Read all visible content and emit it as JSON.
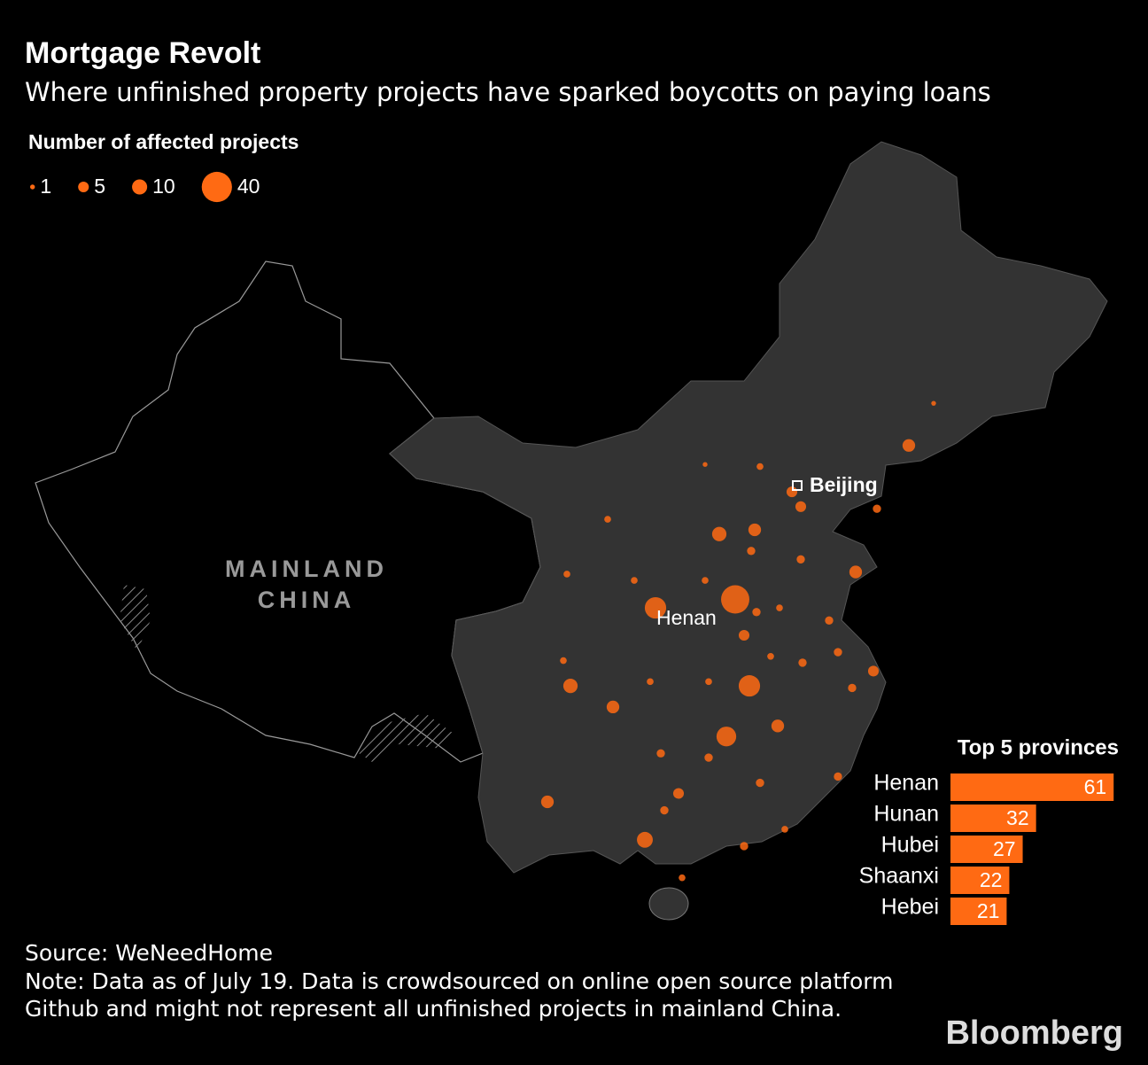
{
  "header": {
    "title": "Mortgage Revolt",
    "subtitle": "Where unfinished property projects have sparked boycotts on paying loans"
  },
  "legend": {
    "title": "Number of affected projects",
    "values": [
      1,
      5,
      10,
      40
    ],
    "color": "#ff6a13"
  },
  "map": {
    "region_label": [
      "MAINLAND",
      "CHINA"
    ],
    "city": "Beijing",
    "province": "Henan",
    "color": "#ff6a13",
    "bubbles": [
      {
        "lon": 112.9,
        "lat": 34.5,
        "value": 35
      },
      {
        "lon": 108.4,
        "lat": 34.1,
        "value": 20
      },
      {
        "lon": 113.7,
        "lat": 30.4,
        "value": 20
      },
      {
        "lon": 112.4,
        "lat": 28.0,
        "value": 17
      },
      {
        "lon": 112.0,
        "lat": 37.6,
        "value": 9
      },
      {
        "lon": 114.0,
        "lat": 37.8,
        "value": 7
      },
      {
        "lon": 122.7,
        "lat": 41.8,
        "value": 7
      },
      {
        "lon": 107.8,
        "lat": 23.1,
        "value": 11
      },
      {
        "lon": 103.6,
        "lat": 30.4,
        "value": 9
      },
      {
        "lon": 102.3,
        "lat": 24.9,
        "value": 7
      },
      {
        "lon": 106.0,
        "lat": 29.4,
        "value": 7
      },
      {
        "lon": 109.7,
        "lat": 25.3,
        "value": 5
      },
      {
        "lon": 115.3,
        "lat": 28.5,
        "value": 7
      },
      {
        "lon": 119.7,
        "lat": 35.8,
        "value": 7
      },
      {
        "lon": 113.4,
        "lat": 32.8,
        "value": 5
      },
      {
        "lon": 116.1,
        "lat": 39.6,
        "value": 5
      },
      {
        "lon": 116.6,
        "lat": 38.9,
        "value": 5
      },
      {
        "lon": 120.9,
        "lat": 38.8,
        "value": 3
      },
      {
        "lon": 113.8,
        "lat": 36.8,
        "value": 3
      },
      {
        "lon": 116.6,
        "lat": 36.4,
        "value": 3
      },
      {
        "lon": 118.2,
        "lat": 33.5,
        "value": 3
      },
      {
        "lon": 118.7,
        "lat": 32.0,
        "value": 3
      },
      {
        "lon": 120.7,
        "lat": 31.1,
        "value": 5
      },
      {
        "lon": 119.5,
        "lat": 30.3,
        "value": 3
      },
      {
        "lon": 116.7,
        "lat": 31.5,
        "value": 3
      },
      {
        "lon": 111.4,
        "lat": 27.0,
        "value": 3
      },
      {
        "lon": 114.3,
        "lat": 25.8,
        "value": 3
      },
      {
        "lon": 108.9,
        "lat": 24.5,
        "value": 3
      },
      {
        "lon": 113.4,
        "lat": 22.8,
        "value": 3
      },
      {
        "lon": 118.7,
        "lat": 26.1,
        "value": 3
      },
      {
        "lon": 115.7,
        "lat": 23.6,
        "value": 2
      },
      {
        "lon": 111.2,
        "lat": 35.4,
        "value": 2
      },
      {
        "lon": 107.2,
        "lat": 35.4,
        "value": 2
      },
      {
        "lon": 105.7,
        "lat": 38.3,
        "value": 2
      },
      {
        "lon": 103.4,
        "lat": 35.7,
        "value": 2
      },
      {
        "lon": 114.3,
        "lat": 40.8,
        "value": 2
      },
      {
        "lon": 111.2,
        "lat": 40.9,
        "value": 1
      },
      {
        "lon": 124.1,
        "lat": 43.8,
        "value": 1
      },
      {
        "lon": 103.2,
        "lat": 31.6,
        "value": 2
      },
      {
        "lon": 108.1,
        "lat": 30.6,
        "value": 2
      },
      {
        "lon": 108.7,
        "lat": 27.2,
        "value": 3
      },
      {
        "lon": 111.4,
        "lat": 30.6,
        "value": 2
      },
      {
        "lon": 114.9,
        "lat": 31.8,
        "value": 2
      },
      {
        "lon": 115.4,
        "lat": 34.1,
        "value": 2
      },
      {
        "lon": 109.9,
        "lat": 21.3,
        "value": 2
      },
      {
        "lon": 114.1,
        "lat": 33.9,
        "value": 3
      }
    ]
  },
  "chart_data": {
    "type": "bar",
    "title": "Top 5 provinces",
    "categories": [
      "Henan",
      "Hunan",
      "Hubei",
      "Shaanxi",
      "Hebei"
    ],
    "values": [
      61,
      32,
      27,
      22,
      21
    ],
    "color": "#ff6a13"
  },
  "footer": {
    "source": "Source: WeNeedHome",
    "note": "Note: Data as of July 19. Data is crowdsourced on online open source platform Github and might not represent all unfinished projects in mainland China.",
    "logo": "Bloomberg"
  }
}
